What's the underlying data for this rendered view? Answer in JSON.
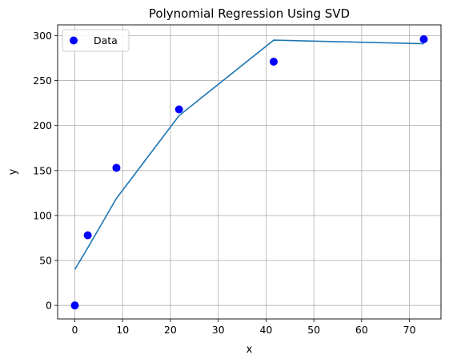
{
  "chart_data": {
    "type": "scatter",
    "title": "Polynomial Regression Using SVD",
    "xlabel": "x",
    "ylabel": "y",
    "xlim": [
      -3.6,
      76.6
    ],
    "ylim": [
      -15,
      312
    ],
    "xticks": [
      0,
      10,
      20,
      30,
      40,
      50,
      60,
      70
    ],
    "yticks": [
      0,
      50,
      100,
      150,
      200,
      250,
      300
    ],
    "grid": true,
    "legend_position": "top-left",
    "series": [
      {
        "name": "Data",
        "kind": "scatter",
        "color": "#0000ff",
        "x": [
          0,
          2.7,
          8.7,
          21.8,
          41.6,
          73.0
        ],
        "y": [
          0,
          78,
          153,
          218,
          271,
          296
        ]
      },
      {
        "kind": "line",
        "color": "#1f77b4",
        "x": [
          0,
          2.7,
          8.7,
          21.8,
          41.6,
          73.0
        ],
        "y": [
          40,
          64,
          119,
          211,
          295,
          291
        ]
      }
    ]
  }
}
